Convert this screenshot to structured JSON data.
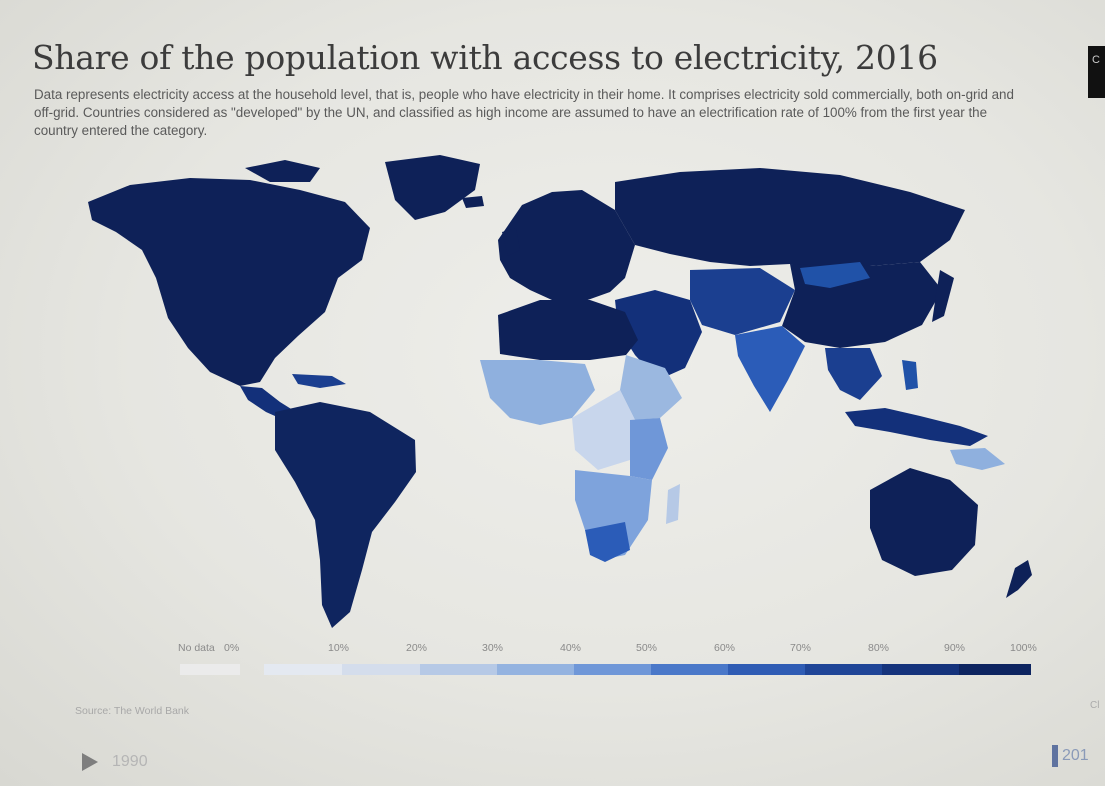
{
  "header": {
    "title": "Share of the population with access to electricity, 2016",
    "subtitle": "Data represents electricity access at the household level, that is, people who have electricity in their home. It comprises electricity sold commercially, both on-grid and off-grid. Countries considered as \"developed\" by the UN, and classified as high income are assumed to have an electrification rate of 100% from the first year the country entered the category."
  },
  "legend": {
    "items": [
      {
        "label": "No data",
        "color": "#ebebeb"
      },
      {
        "label": "0%",
        "color": "#e4e9f1"
      },
      {
        "label": "10%",
        "color": "#d4ddec"
      },
      {
        "label": "20%",
        "color": "#b6c9e6"
      },
      {
        "label": "30%",
        "color": "#94b3e0"
      },
      {
        "label": "40%",
        "color": "#6f97d8"
      },
      {
        "label": "50%",
        "color": "#4a78c9"
      },
      {
        "label": "60%",
        "color": "#2f5cb4"
      },
      {
        "label": "70%",
        "color": "#1f4597"
      },
      {
        "label": "80%",
        "color": "#15337c"
      },
      {
        "label": "90%",
        "color": "#0d2460"
      },
      {
        "label": "100%",
        "color": ""
      }
    ]
  },
  "source": "Source: The World Bank",
  "timeline": {
    "start_year": "1990",
    "end_year": "201"
  },
  "top_button_label": "C",
  "side_fragment": "Cl",
  "colors": {
    "high_access": "#0d1f55",
    "mid_access": "#2a58b2",
    "low_access": "#8fb0de",
    "very_low_access": "#c8d6ec"
  }
}
